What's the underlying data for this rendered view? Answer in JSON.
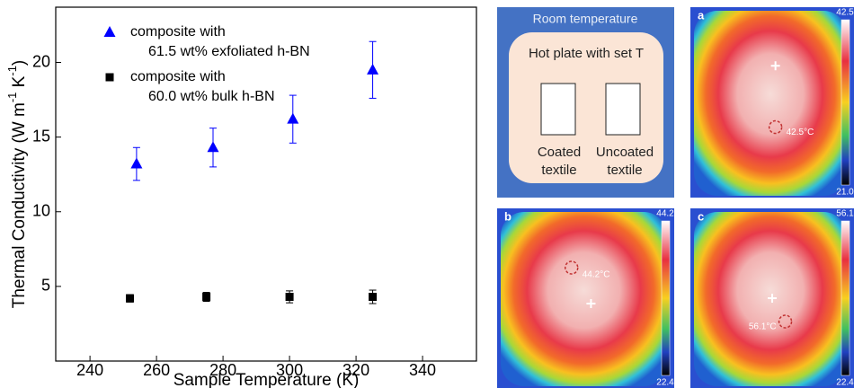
{
  "chart_data": {
    "type": "scatter",
    "x_label": "Sample Temperature (K)",
    "y_label": [
      "Thermal Conductivity (W m",
      "-1",
      " K",
      "-1",
      ")"
    ],
    "xlim": [
      229.7,
      356.2
    ],
    "xticks": [
      240,
      260,
      280,
      300,
      320,
      340
    ],
    "ylim": [
      0,
      23.7
    ],
    "yticks": [
      5,
      10,
      15,
      20
    ],
    "series": [
      {
        "name": [
          "composite with",
          "61.5 wt% exfoliated h-BN"
        ],
        "color": "#0000ff",
        "marker": "triangle",
        "x": [
          254,
          277,
          301,
          325
        ],
        "values": [
          13.2,
          14.3,
          16.2,
          19.5
        ],
        "errors": [
          1.1,
          1.3,
          1.6,
          1.9
        ]
      },
      {
        "name": [
          "composite with",
          "60.0 wt% bulk h-BN"
        ],
        "color": "#000000",
        "marker": "square",
        "x": [
          252,
          275,
          300,
          325
        ],
        "values": [
          4.2,
          4.3,
          4.3,
          4.3
        ],
        "errors": [
          0.25,
          0.3,
          0.4,
          0.45
        ]
      }
    ]
  },
  "panels": {
    "schematic": {
      "title": "Room temperature",
      "plate": "Hot plate with set T",
      "left": [
        "Coated",
        "textile"
      ],
      "right": [
        "Uncoated",
        "textile"
      ]
    },
    "images": [
      {
        "letter": "a",
        "max": "42.5",
        "min": "21.0",
        "spot": "42.5°C"
      },
      {
        "letter": "b",
        "max": "44.2",
        "min": "22.4",
        "spot": "44.2°C"
      },
      {
        "letter": "c",
        "max": "56.1",
        "min": "22.4",
        "spot": "56.1°C"
      }
    ]
  }
}
